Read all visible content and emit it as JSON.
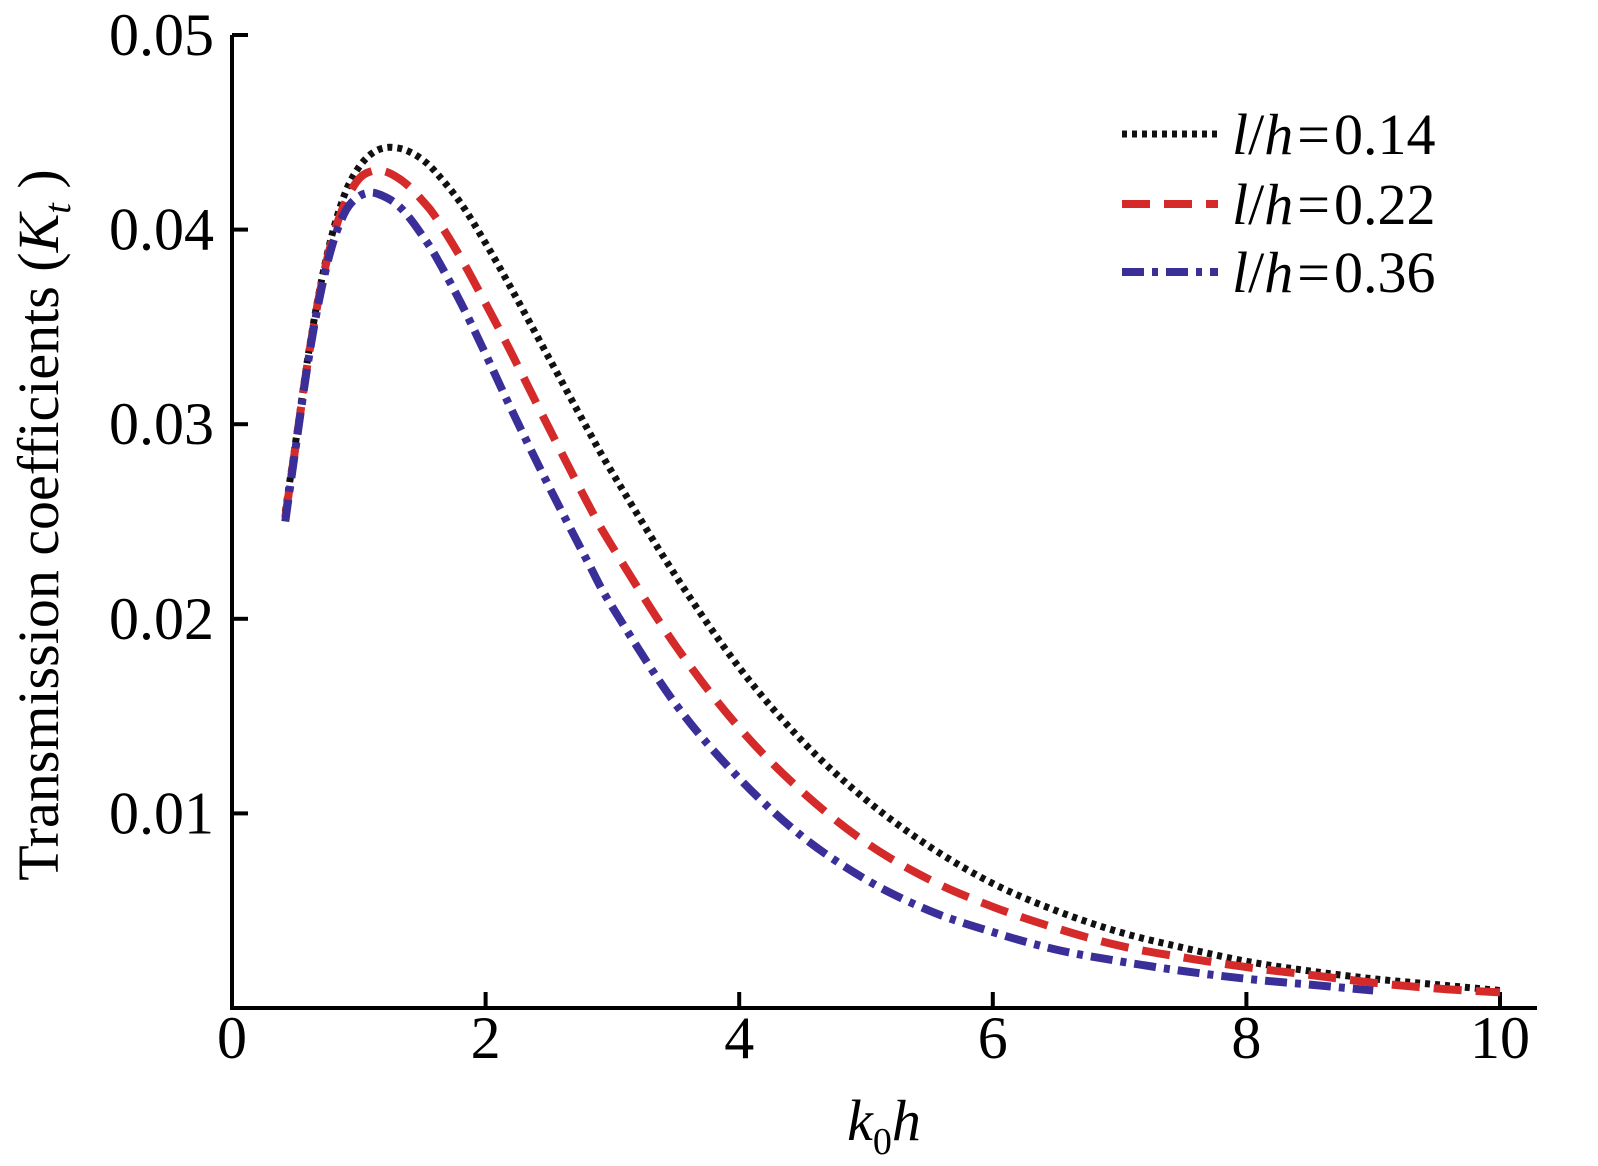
{
  "chart_data": {
    "type": "line",
    "xlabel": {
      "k": "k",
      "sub": "0",
      "h": "h"
    },
    "ylabel": {
      "text": "Transmission coefficients (",
      "k": "K",
      "sub": "t",
      "close": " )"
    },
    "xlim": [
      0,
      10
    ],
    "ylim": [
      0,
      0.05
    ],
    "xticks": [
      0,
      2,
      4,
      6,
      8,
      10
    ],
    "xtick_labels": [
      "0",
      "2",
      "4",
      "6",
      "8",
      "10"
    ],
    "yticks": [
      0.01,
      0.02,
      0.03,
      0.04,
      0.05
    ],
    "ytick_labels": [
      "0.01",
      "0.02",
      "0.03",
      "0.04",
      "0.05"
    ],
    "legend_position": "top-right",
    "grid": false,
    "series": [
      {
        "name": "l/h = 0.14",
        "legend": {
          "l": "l",
          "slash": "/",
          "h": "h",
          "eq": "=",
          "val": "0.14"
        },
        "color": "#111111",
        "style": "dotted",
        "x": [
          0.42,
          0.5,
          0.6,
          0.7,
          0.8,
          0.9,
          1.0,
          1.1,
          1.2,
          1.3,
          1.4,
          1.5,
          1.6,
          1.8,
          2.0,
          2.2,
          2.5,
          2.8,
          3.0,
          3.5,
          4.0,
          4.5,
          5.0,
          5.5,
          6.0,
          6.5,
          7.0,
          7.5,
          8.0,
          8.5,
          9.0,
          9.5,
          10.0
        ],
        "y": [
          0.0255,
          0.029,
          0.0335,
          0.0372,
          0.04,
          0.042,
          0.0432,
          0.0439,
          0.0442,
          0.0442,
          0.044,
          0.0436,
          0.043,
          0.0414,
          0.0393,
          0.037,
          0.0334,
          0.0298,
          0.0275,
          0.0222,
          0.0175,
          0.0137,
          0.0107,
          0.0083,
          0.0064,
          0.005,
          0.0039,
          0.0031,
          0.0024,
          0.0019,
          0.0015,
          0.0012,
          0.0009
        ]
      },
      {
        "name": "l/h = 0.22",
        "legend": {
          "l": "l",
          "slash": "/",
          "h": "h",
          "eq": "=",
          "val": "0.22"
        },
        "color": "#d42a2a",
        "style": "dashed",
        "x": [
          0.42,
          0.5,
          0.6,
          0.7,
          0.8,
          0.9,
          1.0,
          1.1,
          1.2,
          1.3,
          1.4,
          1.5,
          1.6,
          1.8,
          2.0,
          2.2,
          2.5,
          2.8,
          3.0,
          3.5,
          4.0,
          4.5,
          5.0,
          5.5,
          6.0,
          6.5,
          7.0,
          7.5,
          8.0,
          8.5,
          9.0,
          9.5,
          10.0
        ],
        "y": [
          0.0252,
          0.0288,
          0.0333,
          0.037,
          0.0397,
          0.0415,
          0.0426,
          0.043,
          0.043,
          0.0427,
          0.0422,
          0.0415,
          0.0407,
          0.0386,
          0.0362,
          0.0337,
          0.0298,
          0.026,
          0.0237,
          0.0186,
          0.0144,
          0.0111,
          0.0085,
          0.0066,
          0.0052,
          0.0041,
          0.0032,
          0.0026,
          0.0021,
          0.0017,
          0.0013,
          0.001,
          0.0008
        ]
      },
      {
        "name": "l/h = 0.36",
        "legend": {
          "l": "l",
          "slash": "/",
          "h": "h",
          "eq": "=",
          "val": "0.36"
        },
        "color": "#3a2e99",
        "style": "dashdot",
        "x": [
          0.42,
          0.5,
          0.6,
          0.7,
          0.8,
          0.9,
          1.0,
          1.1,
          1.2,
          1.3,
          1.4,
          1.5,
          1.6,
          1.8,
          2.0,
          2.2,
          2.5,
          2.8,
          3.0,
          3.5,
          4.0,
          4.5,
          5.0,
          5.5,
          6.0,
          6.5,
          7.0,
          7.5,
          8.0,
          8.5,
          9.0
        ],
        "y": [
          0.025,
          0.0287,
          0.0332,
          0.0368,
          0.0394,
          0.041,
          0.0417,
          0.0419,
          0.0417,
          0.0413,
          0.0406,
          0.0397,
          0.0387,
          0.0363,
          0.0336,
          0.0308,
          0.0268,
          0.023,
          0.0206,
          0.0156,
          0.0118,
          0.0088,
          0.0066,
          0.005,
          0.0039,
          0.003,
          0.0024,
          0.0019,
          0.0015,
          0.0012,
          0.0009
        ]
      }
    ]
  }
}
